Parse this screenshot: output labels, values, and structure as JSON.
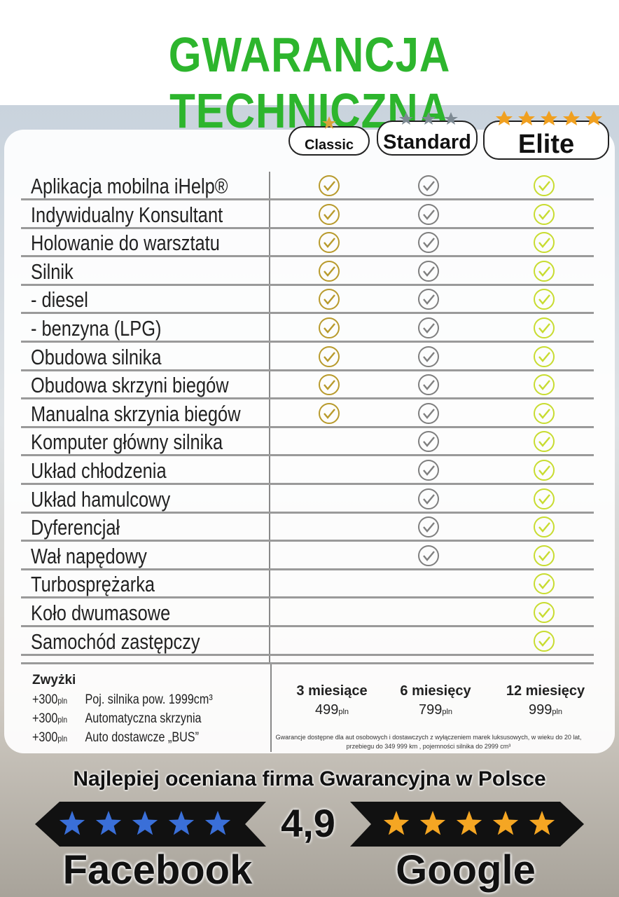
{
  "header": {
    "title": "GWARANCJA TECHNICZNA"
  },
  "plans": [
    "Classic",
    "Standard",
    "Elite"
  ],
  "features": [
    {
      "label": "Aplikacja mobilna iHelp®",
      "checks": [
        true,
        true,
        true
      ]
    },
    {
      "label": "Indywidualny Konsultant",
      "checks": [
        true,
        true,
        true
      ]
    },
    {
      "label": "Holowanie do warsztatu",
      "checks": [
        true,
        true,
        true
      ]
    },
    {
      "label": "Silnik",
      "checks": [
        true,
        true,
        true
      ]
    },
    {
      "label": "- diesel",
      "checks": [
        true,
        true,
        true
      ]
    },
    {
      "label": "- benzyna (LPG)",
      "checks": [
        true,
        true,
        true
      ]
    },
    {
      "label": "Obudowa silnika",
      "checks": [
        true,
        true,
        true
      ]
    },
    {
      "label": "Obudowa skrzyni biegów",
      "checks": [
        true,
        true,
        true
      ]
    },
    {
      "label": "Manualna skrzynia biegów",
      "checks": [
        true,
        true,
        true
      ]
    },
    {
      "label": "Komputer główny silnika",
      "checks": [
        false,
        true,
        true
      ]
    },
    {
      "label": "Układ chłodzenia",
      "checks": [
        false,
        true,
        true
      ]
    },
    {
      "label": "Układ hamulcowy",
      "checks": [
        false,
        true,
        true
      ]
    },
    {
      "label": "Dyferencjał",
      "checks": [
        false,
        true,
        true
      ]
    },
    {
      "label": "Wał napędowy",
      "checks": [
        false,
        true,
        true
      ]
    },
    {
      "label": "Turbosprężarka",
      "checks": [
        false,
        false,
        true
      ]
    },
    {
      "label": "Koło dwumasowe",
      "checks": [
        false,
        false,
        true
      ]
    },
    {
      "label": "Samochód zastępczy",
      "checks": [
        false,
        false,
        true
      ]
    }
  ],
  "surcharges": {
    "title": "Zwyżki",
    "items": [
      {
        "amount": "+300",
        "unit": "pln",
        "label": "Poj. silnika pow. 1999cm³"
      },
      {
        "amount": "+300",
        "unit": "pln",
        "label": "Automatyczna skrzynia"
      },
      {
        "amount": "+300",
        "unit": "pln",
        "label": "Auto dostawcze „BUS”"
      }
    ]
  },
  "prices": [
    {
      "period": "3 miesiące",
      "price": "499",
      "unit": "pln"
    },
    {
      "period": "6 miesięcy",
      "price": "799",
      "unit": "pln"
    },
    {
      "period": "12 miesięcy",
      "price": "999",
      "unit": "pln"
    }
  ],
  "note": "Gwarancje dostępne dla aut osobowych i dostawczych z wyłączeniem marek luksusowych, w wieku do 20 lat, przebiegu do 349 999 km , pojemności silnika do 2999 cm³",
  "rating": {
    "headline": "Najlepiej oceniana firma Gwarancyjna w Polsce",
    "score": "4,9",
    "left": "Facebook",
    "right": "Google"
  }
}
